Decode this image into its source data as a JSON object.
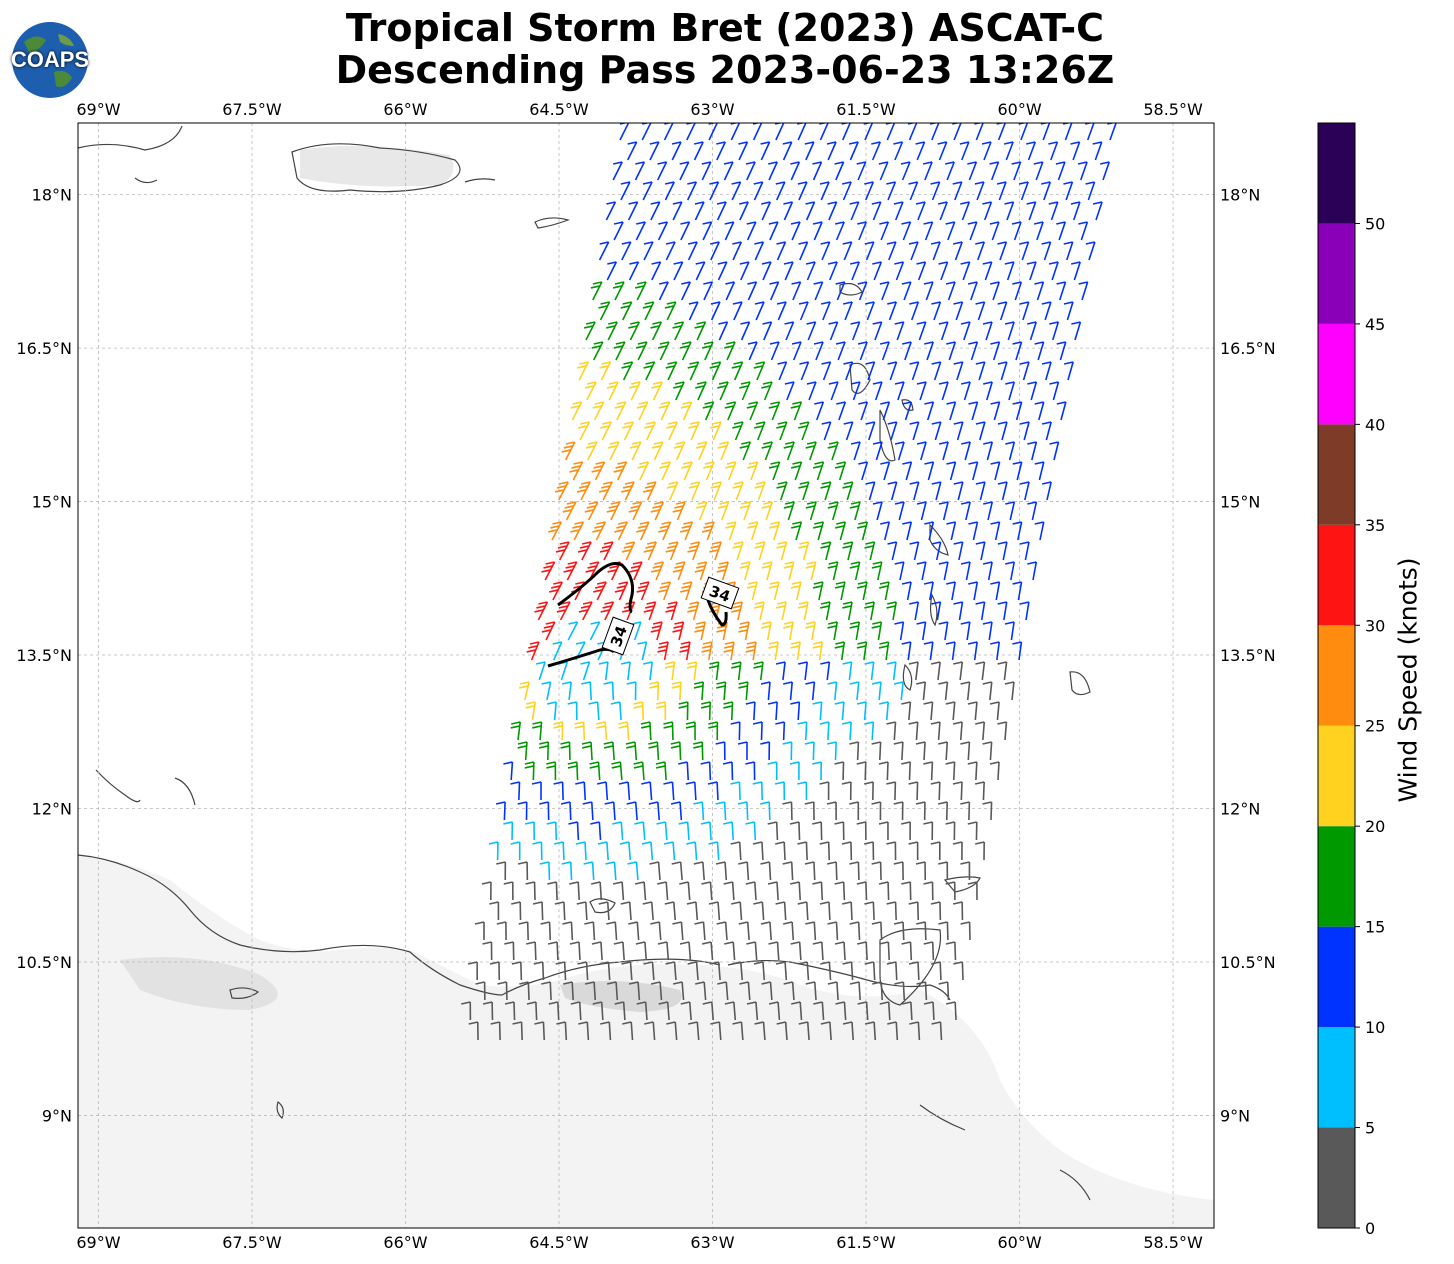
{
  "title": {
    "line1": "Tropical Storm Bret (2023) ASCAT-C",
    "line2": "Descending Pass 2023-06-23 13:26Z"
  },
  "logo": {
    "text": "COAPS"
  },
  "map": {
    "lon_range": [
      -69.2,
      -58.1
    ],
    "lat_range": [
      7.9,
      18.7
    ],
    "lon_ticks": [
      "69°W",
      "67.5°W",
      "66°W",
      "64.5°W",
      "63°W",
      "61.5°W",
      "60°W",
      "58.5°W"
    ],
    "lon_tick_values": [
      -69,
      -67.5,
      -66,
      -64.5,
      -63,
      -61.5,
      -60,
      -58.5
    ],
    "lat_ticks": [
      "18°N",
      "16.5°N",
      "15°N",
      "13.5°N",
      "12°N",
      "10.5°N",
      "9°N"
    ],
    "lat_tick_values": [
      18,
      16.5,
      15,
      13.5,
      12,
      10.5,
      9
    ],
    "contour_labels": [
      "34",
      "34"
    ],
    "contour_value": 34
  },
  "colorbar": {
    "label": "Wind Speed (knots)",
    "ticks": [
      "0",
      "5",
      "10",
      "15",
      "20",
      "25",
      "30",
      "35",
      "40",
      "45",
      "50"
    ],
    "colors": [
      "#595959",
      "#00bfff",
      "#0033ff",
      "#009900",
      "#ffd21f",
      "#ff8c0f",
      "#ff1414",
      "#7e3b27",
      "#ff00ff",
      "#8a00b8",
      "#2b0057"
    ],
    "range": [
      0,
      55
    ]
  },
  "colors": {
    "coast": "#444444",
    "grid": "#b8b8b8",
    "contour": "#000000"
  }
}
